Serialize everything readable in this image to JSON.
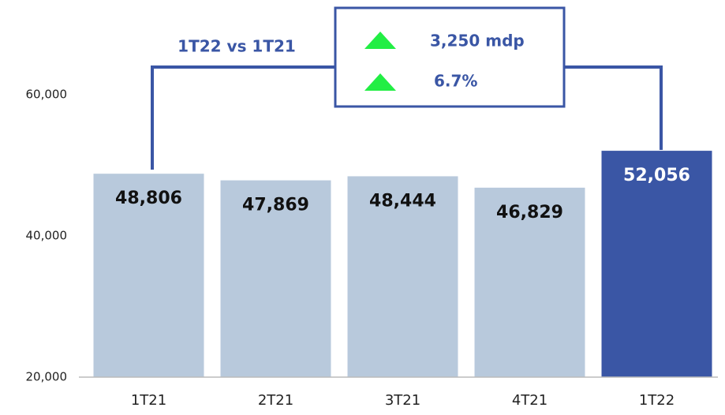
{
  "chart_data": {
    "type": "bar",
    "categories": [
      "1T21",
      "2T21",
      "3T21",
      "4T21",
      "1T22"
    ],
    "values": [
      48806,
      47869,
      48444,
      46829,
      52056
    ],
    "value_labels": [
      "48,806",
      "47,869",
      "48,444",
      "46,829",
      "52,056"
    ],
    "colors": [
      "#b8c9dc",
      "#b8c9dc",
      "#b8c9dc",
      "#b8c9dc",
      "#3a56a5"
    ],
    "ylim": [
      20000,
      60000
    ],
    "yticks": [
      {
        "value": 20000,
        "label": "20,000"
      },
      {
        "value": 40000,
        "label": "40,000"
      },
      {
        "value": 60000,
        "label": "60,000"
      }
    ],
    "grid": false,
    "annotations": {
      "comparison": "1T22 vs 1T21",
      "change_abs": "3,250 mdp",
      "change_pct": "6.7%"
    }
  }
}
